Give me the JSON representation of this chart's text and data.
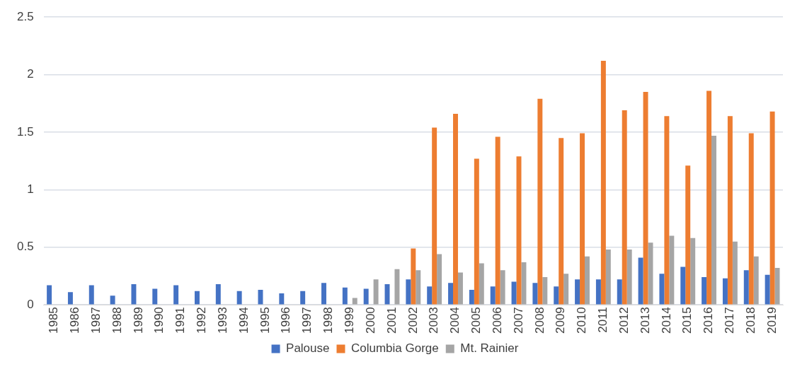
{
  "chart_data": {
    "type": "bar",
    "categories": [
      "1985",
      "1986",
      "1987",
      "1988",
      "1989",
      "1990",
      "1991",
      "1992",
      "1993",
      "1994",
      "1995",
      "1996",
      "1997",
      "1998",
      "1999",
      "2000",
      "2001",
      "2002",
      "2003",
      "2004",
      "2005",
      "2006",
      "2007",
      "2008",
      "2009",
      "2010",
      "2011",
      "2012",
      "2013",
      "2014",
      "2015",
      "2016",
      "2017",
      "2018",
      "2019"
    ],
    "series": [
      {
        "name": "Palouse",
        "color": "#4472c4",
        "values": [
          0.17,
          0.11,
          0.17,
          0.08,
          0.18,
          0.14,
          0.17,
          0.12,
          0.18,
          0.12,
          0.13,
          0.1,
          0.12,
          0.19,
          0.15,
          0.14,
          0.18,
          0.22,
          0.16,
          0.19,
          0.13,
          0.16,
          0.2,
          0.19,
          0.16,
          0.22,
          0.22,
          0.22,
          0.41,
          0.27,
          0.33,
          0.24,
          0.23,
          0.3,
          0.26
        ]
      },
      {
        "name": "Columbia Gorge",
        "color": "#ed7d31",
        "values": [
          null,
          null,
          null,
          null,
          null,
          null,
          null,
          null,
          null,
          null,
          null,
          null,
          null,
          null,
          null,
          null,
          null,
          0.49,
          1.54,
          1.66,
          1.27,
          1.46,
          1.29,
          1.79,
          1.45,
          1.49,
          2.12,
          1.69,
          1.85,
          1.64,
          1.21,
          1.86,
          1.64,
          1.49,
          1.68
        ]
      },
      {
        "name": "Mt. Rainier",
        "color": "#a5a5a5",
        "values": [
          null,
          null,
          null,
          null,
          null,
          null,
          null,
          null,
          null,
          null,
          null,
          null,
          null,
          null,
          0.06,
          0.22,
          0.31,
          0.3,
          0.44,
          0.28,
          0.36,
          0.3,
          0.37,
          0.24,
          0.27,
          0.42,
          0.48,
          0.48,
          0.54,
          0.6,
          0.58,
          1.47,
          0.55,
          0.42,
          0.32
        ]
      }
    ],
    "ylim": [
      0,
      2.5
    ],
    "yticks": [
      0,
      0.5,
      1,
      1.5,
      2,
      2.5
    ],
    "grid": "y",
    "legend": "bottom"
  }
}
